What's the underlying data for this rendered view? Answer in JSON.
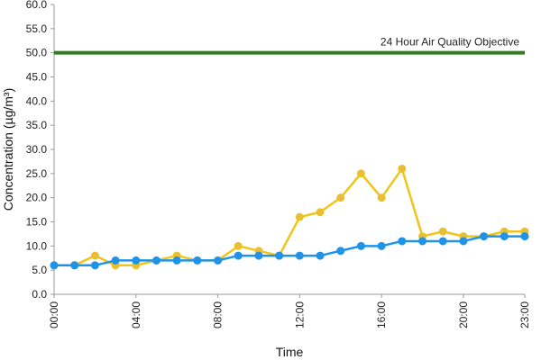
{
  "chart_data": {
    "type": "line",
    "xlabel": "Time",
    "ylabel": "Concentration (µg/m³)",
    "ylim": [
      0,
      60
    ],
    "y_ticks": [
      "0.0",
      "5.0",
      "10.0",
      "15.0",
      "20.0",
      "25.0",
      "30.0",
      "35.0",
      "40.0",
      "45.0",
      "50.0",
      "55.0",
      "60.0"
    ],
    "x_ticks": [
      "00:00",
      "04:00",
      "08:00",
      "12:00",
      "16:00",
      "20:00",
      "23:00"
    ],
    "x_tick_hours": [
      0,
      4,
      8,
      12,
      16,
      20,
      23
    ],
    "x_hours": [
      0,
      1,
      2,
      3,
      4,
      5,
      6,
      7,
      8,
      9,
      10,
      11,
      12,
      13,
      14,
      15,
      16,
      17,
      18,
      19,
      20,
      21,
      22,
      23
    ],
    "grid": false,
    "legend": "none",
    "series": [
      {
        "color": "#f0c419",
        "marker_color": "#e6be3c",
        "values": [
          6,
          6,
          8,
          6,
          6,
          7,
          8,
          7,
          7,
          10,
          9,
          8,
          16,
          17,
          20,
          25,
          20,
          26,
          12,
          13,
          12,
          12,
          13,
          13
        ]
      },
      {
        "color": "#1f93e8",
        "marker_color": "#1f93e8",
        "values": [
          6,
          6,
          6,
          7,
          7,
          7,
          7,
          7,
          7,
          8,
          8,
          8,
          8,
          8,
          9,
          10,
          10,
          11,
          11,
          11,
          11,
          12,
          12,
          12
        ]
      }
    ],
    "objective": {
      "label": "24 Hour Air Quality Objective",
      "value": 50,
      "color": "#2e7d1e"
    }
  }
}
